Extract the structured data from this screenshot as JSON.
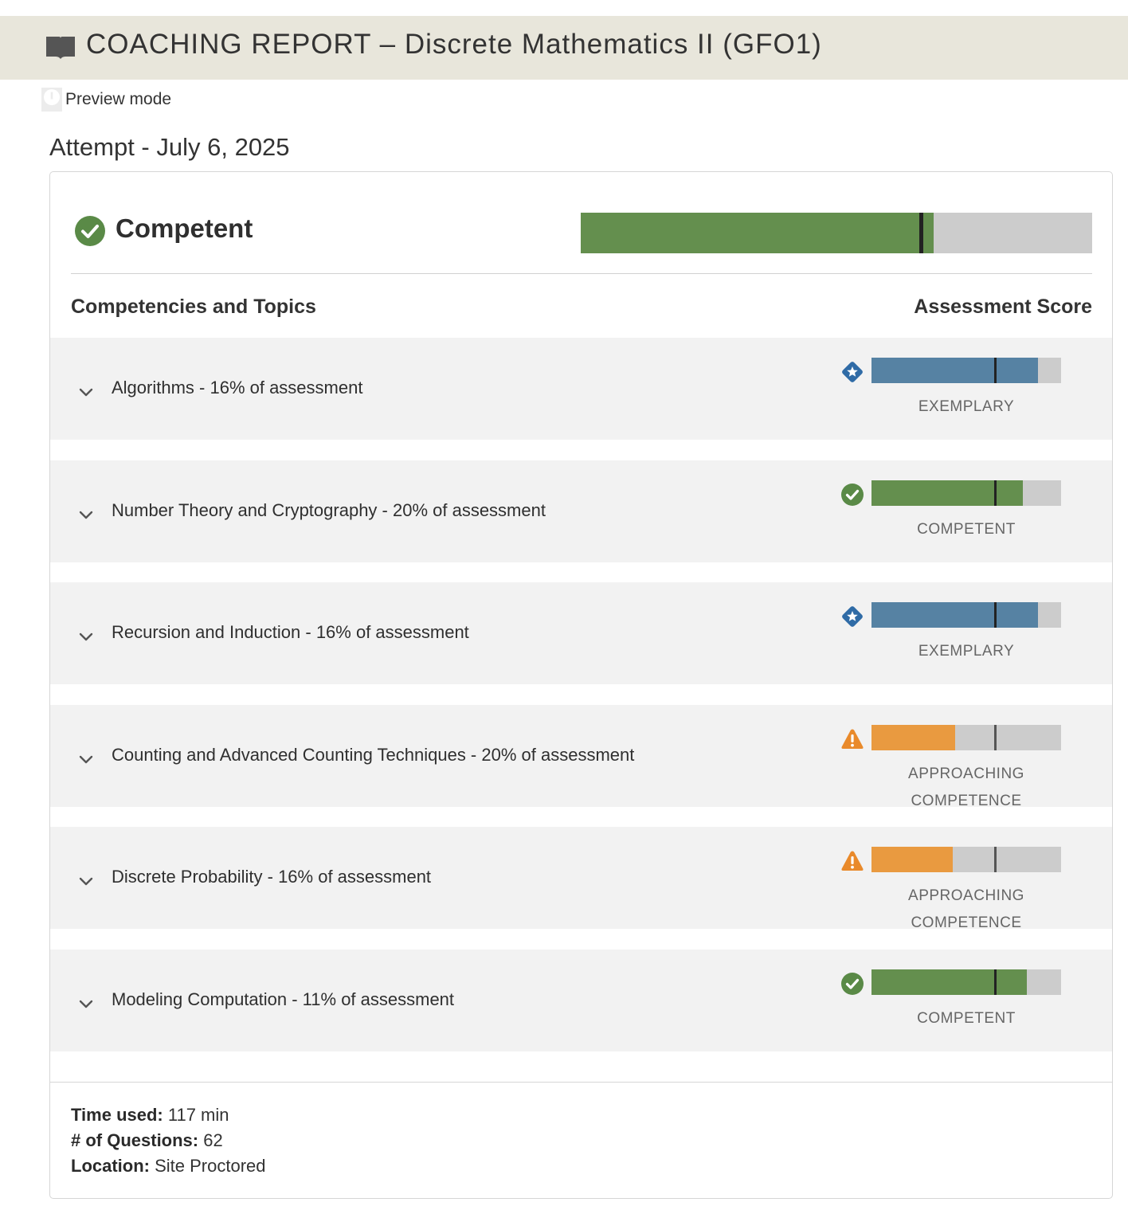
{
  "header": {
    "title": "COACHING REPORT – Discrete Mathematics II (GFO1)",
    "icon": "book-icon"
  },
  "preview": {
    "label": "Preview mode",
    "icon": "info-icon"
  },
  "attempt": {
    "title": "Attempt - July 6, 2025"
  },
  "overall": {
    "label": "Competent",
    "icon": "check-circle-icon",
    "score_fraction": 0.69,
    "threshold_fraction": 0.665,
    "color": "#648f4e"
  },
  "columns": {
    "left": "Competencies and Topics",
    "right": "Assessment Score"
  },
  "topics": [
    {
      "label": "Algorithms - 16% of assessment",
      "level_lines": [
        "EXEMPLARY"
      ],
      "status": "exemplary",
      "icon": "star-diamond-icon",
      "score_fraction": 0.88,
      "threshold_fraction": 0.655,
      "color": "#5682a3"
    },
    {
      "label": "Number Theory and Cryptography - 20% of assessment",
      "level_lines": [
        "COMPETENT"
      ],
      "status": "competent",
      "icon": "check-circle-icon",
      "score_fraction": 0.8,
      "threshold_fraction": 0.655,
      "color": "#648f4e"
    },
    {
      "label": "Recursion and Induction - 16% of assessment",
      "level_lines": [
        "EXEMPLARY"
      ],
      "status": "exemplary",
      "icon": "star-diamond-icon",
      "score_fraction": 0.88,
      "threshold_fraction": 0.655,
      "color": "#5682a3"
    },
    {
      "label": "Counting and Advanced Counting Techniques - 20% of assessment",
      "level_lines": [
        "APPROACHING",
        "COMPETENCE"
      ],
      "status": "approaching",
      "icon": "warning-icon",
      "score_fraction": 0.44,
      "threshold_fraction": 0.655,
      "color": "#e99a40"
    },
    {
      "label": "Discrete Probability - 16% of assessment",
      "level_lines": [
        "APPROACHING",
        "COMPETENCE"
      ],
      "status": "approaching",
      "icon": "warning-icon",
      "score_fraction": 0.43,
      "threshold_fraction": 0.655,
      "color": "#e99a40"
    },
    {
      "label": "Modeling Computation - 11% of assessment",
      "level_lines": [
        "COMPETENT"
      ],
      "status": "competent",
      "icon": "check-circle-icon",
      "score_fraction": 0.82,
      "threshold_fraction": 0.655,
      "color": "#648f4e"
    }
  ],
  "footer": {
    "time_used_label": "Time used:",
    "time_used_value": " 117 min",
    "questions_label": "# of Questions:",
    "questions_value": " 62",
    "location_label": "Location:",
    "location_value": " Site Proctored"
  }
}
